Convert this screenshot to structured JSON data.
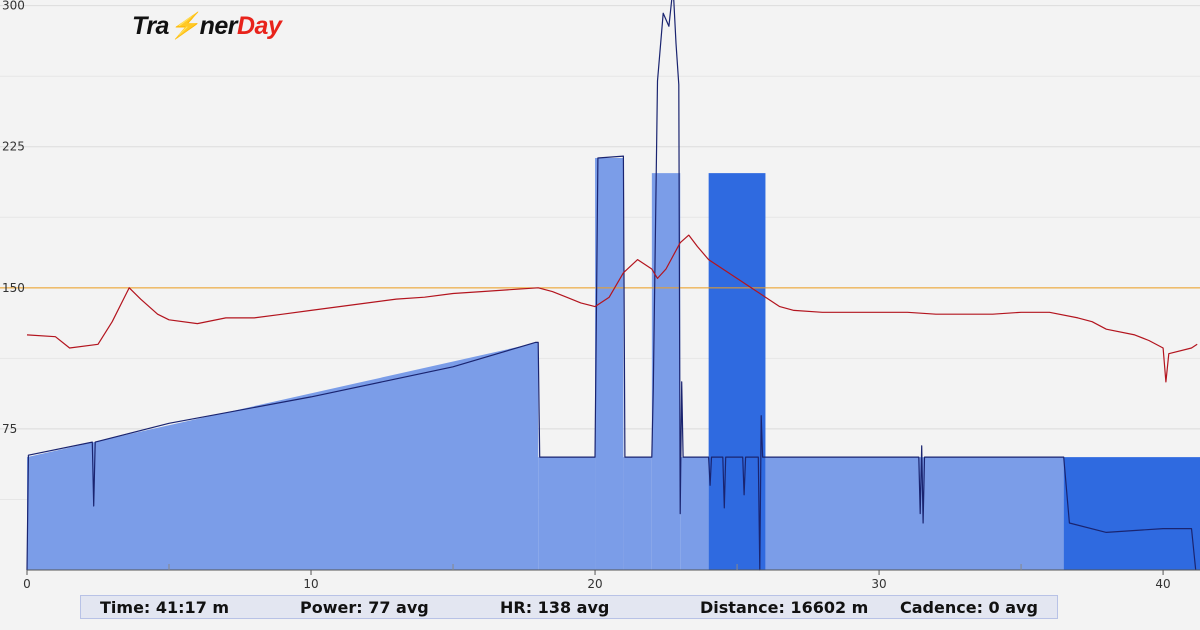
{
  "brand": {
    "part1": "Tra",
    "part2": "ner",
    "part3": "Day"
  },
  "chart_data": {
    "type": "area",
    "xlim": [
      0,
      41.3
    ],
    "ylim": [
      0,
      303
    ],
    "x_ticks": [
      0,
      10,
      20,
      30,
      40
    ],
    "x_minor_ticks": [
      5,
      15,
      25,
      35
    ],
    "y_ticks": [
      75,
      150,
      225,
      300
    ],
    "grid": true,
    "reference_line": {
      "y": 150,
      "color": "#f0a020"
    },
    "target_blocks": [
      {
        "x_start": 0,
        "x_end": 18,
        "y_start": 60,
        "y_end": 121,
        "color": "#7b9de8"
      },
      {
        "x_start": 18,
        "x_end": 20,
        "y_start": 60,
        "y_end": 60,
        "color": "#7b9de8"
      },
      {
        "x_start": 20,
        "x_end": 21,
        "y_start": 219,
        "y_end": 219,
        "color": "#7b9de8"
      },
      {
        "x_start": 21,
        "x_end": 22,
        "y_start": 60,
        "y_end": 60,
        "color": "#7b9de8"
      },
      {
        "x_start": 22,
        "x_end": 23,
        "y_start": 211,
        "y_end": 211,
        "color": "#7b9de8"
      },
      {
        "x_start": 23,
        "x_end": 24,
        "y_start": 60,
        "y_end": 60,
        "color": "#7b9de8"
      },
      {
        "x_start": 24,
        "x_end": 26,
        "y_start": 211,
        "y_end": 211,
        "color": "#2f6ae0"
      },
      {
        "x_start": 26,
        "x_end": 36.5,
        "y_start": 60,
        "y_end": 60,
        "color": "#7b9de8"
      },
      {
        "x_start": 36.5,
        "x_end": 41.3,
        "y_start": 60,
        "y_end": 60,
        "color": "#2f6ae0"
      }
    ],
    "series": [
      {
        "color": "#1a2470",
        "points": [
          [
            0,
            0
          ],
          [
            0.05,
            61
          ],
          [
            2.3,
            68
          ],
          [
            2.35,
            34
          ],
          [
            2.4,
            68
          ],
          [
            5,
            78
          ],
          [
            10,
            92
          ],
          [
            15,
            108
          ],
          [
            17.9,
            121
          ],
          [
            18,
            121
          ],
          [
            18.05,
            60
          ],
          [
            20,
            60
          ],
          [
            20.1,
            219
          ],
          [
            21,
            220
          ],
          [
            21.05,
            60
          ],
          [
            22,
            60
          ],
          [
            22.05,
            97
          ],
          [
            22.2,
            260
          ],
          [
            22.4,
            296
          ],
          [
            22.6,
            289
          ],
          [
            22.75,
            310
          ],
          [
            22.85,
            280
          ],
          [
            22.95,
            258
          ],
          [
            23,
            30
          ],
          [
            23.05,
            100
          ],
          [
            23.1,
            60
          ],
          [
            24,
            60
          ],
          [
            24.05,
            45
          ],
          [
            24.1,
            60
          ],
          [
            24.5,
            60
          ],
          [
            24.55,
            33
          ],
          [
            24.6,
            60
          ],
          [
            25.2,
            60
          ],
          [
            25.25,
            40
          ],
          [
            25.3,
            60
          ],
          [
            25.75,
            60
          ],
          [
            25.8,
            0
          ],
          [
            25.85,
            82
          ],
          [
            25.9,
            60
          ],
          [
            31.4,
            60
          ],
          [
            31.45,
            30
          ],
          [
            31.5,
            66
          ],
          [
            31.55,
            25
          ],
          [
            31.6,
            60
          ],
          [
            36.5,
            60
          ],
          [
            36.7,
            25
          ],
          [
            38,
            20
          ],
          [
            40,
            22
          ],
          [
            41,
            22
          ],
          [
            41.15,
            0
          ]
        ]
      },
      {
        "color": "#b3141e",
        "points": [
          [
            0,
            125
          ],
          [
            1,
            124
          ],
          [
            1.5,
            118
          ],
          [
            2.5,
            120
          ],
          [
            3,
            132
          ],
          [
            3.6,
            150
          ],
          [
            4,
            144
          ],
          [
            4.6,
            136
          ],
          [
            5,
            133
          ],
          [
            6,
            131
          ],
          [
            7,
            134
          ],
          [
            8,
            134
          ],
          [
            9,
            136
          ],
          [
            10,
            138
          ],
          [
            11,
            140
          ],
          [
            12,
            142
          ],
          [
            13,
            144
          ],
          [
            14,
            145
          ],
          [
            15,
            147
          ],
          [
            16,
            148
          ],
          [
            17,
            149
          ],
          [
            18,
            150
          ],
          [
            18.5,
            148
          ],
          [
            19,
            145
          ],
          [
            19.5,
            142
          ],
          [
            20,
            140
          ],
          [
            20.5,
            145
          ],
          [
            21,
            158
          ],
          [
            21.5,
            165
          ],
          [
            22,
            160
          ],
          [
            22.2,
            155
          ],
          [
            22.5,
            160
          ],
          [
            23,
            174
          ],
          [
            23.3,
            178
          ],
          [
            23.6,
            172
          ],
          [
            24,
            165
          ],
          [
            24.5,
            160
          ],
          [
            25,
            155
          ],
          [
            25.5,
            150
          ],
          [
            26,
            145
          ],
          [
            26.5,
            140
          ],
          [
            27,
            138
          ],
          [
            28,
            137
          ],
          [
            29,
            137
          ],
          [
            30,
            137
          ],
          [
            31,
            137
          ],
          [
            32,
            136
          ],
          [
            33,
            136
          ],
          [
            34,
            136
          ],
          [
            35,
            137
          ],
          [
            36,
            137
          ],
          [
            37,
            134
          ],
          [
            37.5,
            132
          ],
          [
            38,
            128
          ],
          [
            39,
            125
          ],
          [
            39.5,
            122
          ],
          [
            40,
            118
          ],
          [
            40.1,
            100
          ],
          [
            40.2,
            115
          ],
          [
            41,
            118
          ],
          [
            41.2,
            120
          ]
        ]
      }
    ]
  },
  "stats": {
    "time": "Time: 41:17 m",
    "power": "Power: 77 avg",
    "hr": "HR: 138 avg",
    "distance": "Distance: 16602 m",
    "cadence": "Cadence: 0 avg"
  }
}
